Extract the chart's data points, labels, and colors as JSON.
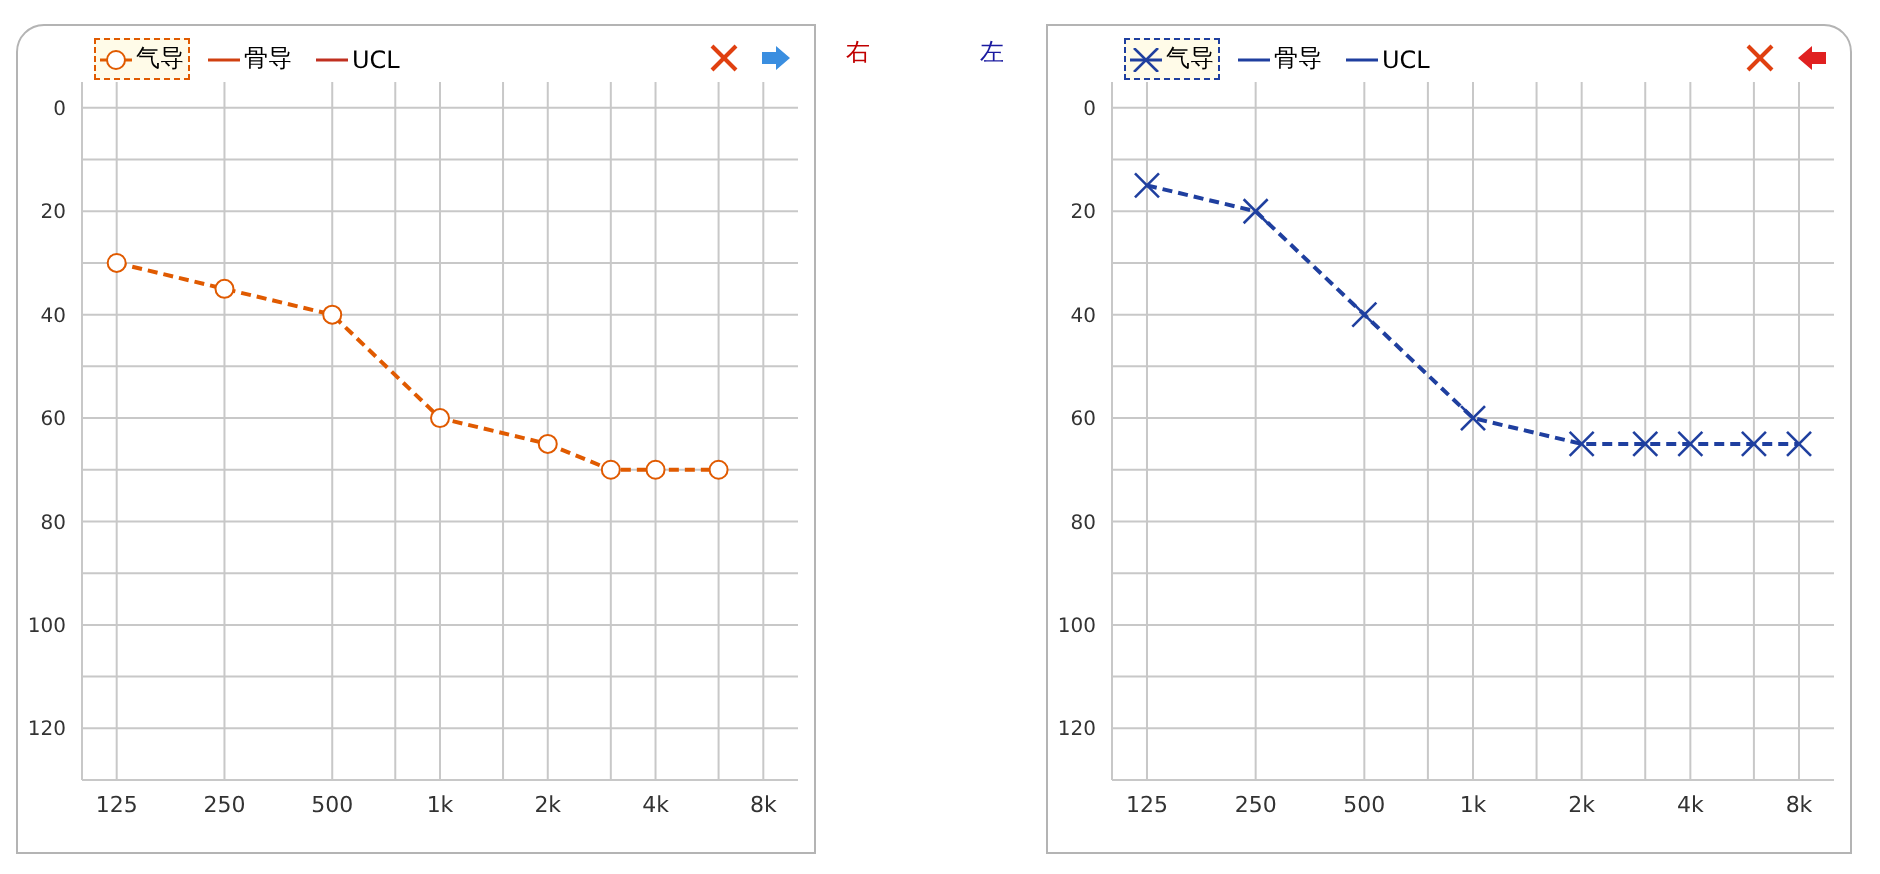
{
  "chart_data": [
    {
      "type": "line",
      "annotations": [
        "右"
      ],
      "log": "x",
      "xlim": [
        100,
        10000
      ],
      "ylim": [
        130,
        -5
      ],
      "xticks": [
        125,
        250,
        500,
        {
          "value": 750,
          "label": null
        },
        {
          "value": 1000,
          "label": "1k"
        },
        {
          "value": 1500,
          "label": null
        },
        {
          "value": 2000,
          "label": "2k"
        },
        {
          "value": 3000,
          "label": null
        },
        {
          "value": 4000,
          "label": "4k"
        },
        {
          "value": 6000,
          "label": null
        },
        {
          "value": 8000,
          "label": "8k"
        }
      ],
      "yticks": [
        0,
        {
          "value": 10,
          "label": null
        },
        20,
        {
          "value": 30,
          "label": null
        },
        40,
        {
          "value": 50,
          "label": null
        },
        60,
        {
          "value": 70,
          "label": null
        },
        80,
        {
          "value": 90,
          "label": null
        },
        100,
        {
          "value": 110,
          "label": null
        },
        120,
        {
          "value": 130,
          "label": null
        }
      ],
      "grid": true,
      "legend": "top left",
      "marker": "circle",
      "line_style": "dashed",
      "series": [
        {
          "name": "气导",
          "color": "#e05a00",
          "x": [
            125,
            250,
            500,
            1000,
            2000,
            3000,
            4000,
            6000
          ],
          "values": [
            30,
            35,
            40,
            60,
            65,
            70,
            70,
            70
          ]
        },
        {
          "name": "骨导",
          "color": "#d04010"
        },
        {
          "name": "UCL",
          "color": "#c03020"
        }
      ]
    },
    {
      "type": "line",
      "annotations": [
        "左"
      ],
      "log": "x",
      "xlim": [
        100,
        10000
      ],
      "ylim": [
        130,
        -5
      ],
      "xticks": [
        125,
        250,
        500,
        {
          "value": 750,
          "label": null
        },
        {
          "value": 1000,
          "label": "1k"
        },
        {
          "value": 1500,
          "label": null
        },
        {
          "value": 2000,
          "label": "2k"
        },
        {
          "value": 3000,
          "label": null
        },
        {
          "value": 4000,
          "label": "4k"
        },
        {
          "value": 6000,
          "label": null
        },
        {
          "value": 8000,
          "label": "8k"
        }
      ],
      "yticks": [
        0,
        {
          "value": 10,
          "label": null
        },
        20,
        {
          "value": 30,
          "label": null
        },
        40,
        {
          "value": 50,
          "label": null
        },
        60,
        {
          "value": 70,
          "label": null
        },
        80,
        {
          "value": 90,
          "label": null
        },
        100,
        {
          "value": 110,
          "label": null
        },
        120,
        {
          "value": 130,
          "label": null
        }
      ],
      "grid": true,
      "legend": "top left",
      "marker": "cross",
      "line_style": "dashed",
      "series": [
        {
          "name": "气导",
          "color": "#1f3f9f",
          "x": [
            125,
            250,
            500,
            1000,
            2000,
            3000,
            4000,
            6000,
            8000
          ],
          "values": [
            15,
            20,
            40,
            60,
            65,
            65,
            65,
            65,
            65
          ]
        },
        {
          "name": "骨导",
          "color": "#1f3f9f"
        },
        {
          "name": "UCL",
          "color": "#1f3f9f"
        }
      ]
    }
  ]
}
